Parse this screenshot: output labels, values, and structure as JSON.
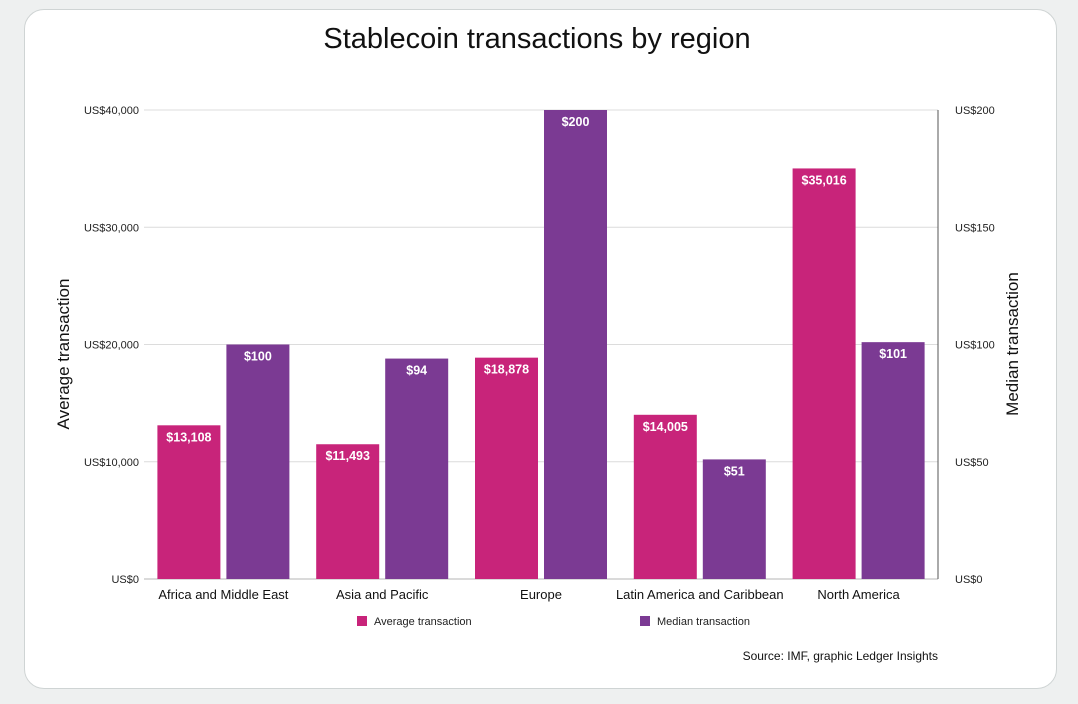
{
  "chart_data": {
    "type": "bar",
    "title": "Stablecoin transactions by region",
    "categories": [
      "Africa and Middle East",
      "Asia and Pacific",
      "Europe",
      "Latin America and Caribbean",
      "North America"
    ],
    "series": [
      {
        "name": "Average transaction",
        "axis": "left",
        "color": "#c8247a",
        "values": [
          13108,
          11493,
          18878,
          14005,
          35016
        ],
        "labels": [
          "$13,108",
          "$11,493",
          "$18,878",
          "$14,005",
          "$35,016"
        ]
      },
      {
        "name": "Median transaction",
        "axis": "right",
        "color": "#7b3a93",
        "values": [
          100,
          94,
          200,
          51,
          101
        ],
        "labels": [
          "$100",
          "$94",
          "$200",
          "$51",
          "$101"
        ]
      }
    ],
    "ylabel_left": "Average transaction",
    "ylabel_right": "Median transaction",
    "ylim_left": [
      0,
      40000
    ],
    "ylim_right": [
      0,
      200
    ],
    "yticks_left": [
      "US$0",
      "US$10,000",
      "US$20,000",
      "US$30,000",
      "US$40,000"
    ],
    "yticks_right": [
      "US$0",
      "US$50",
      "US$100",
      "US$150",
      "US$200"
    ],
    "grid": true,
    "legend": "bottom"
  },
  "source": "Source: IMF, graphic Ledger Insights"
}
